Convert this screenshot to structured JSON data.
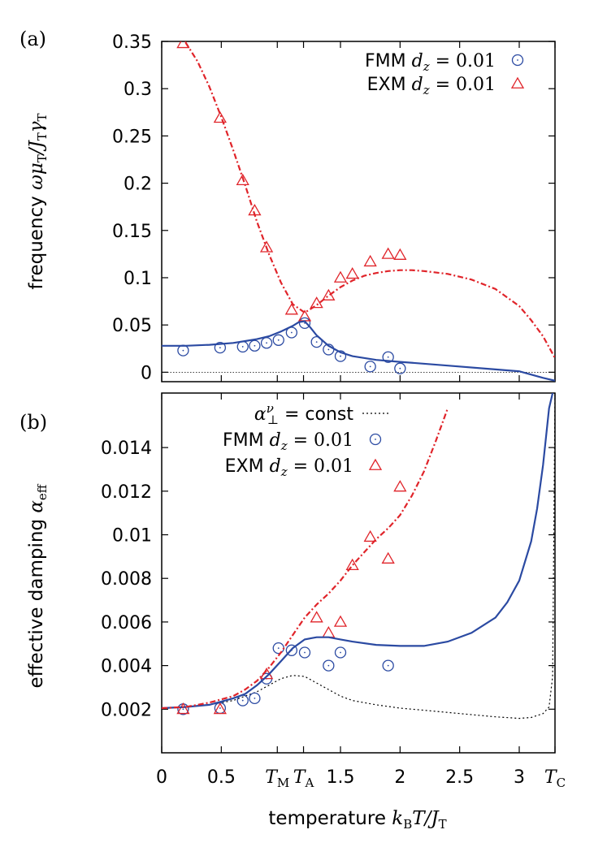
{
  "chart_data": [
    {
      "type": "line",
      "panel_label": "(a)",
      "ylabel_text": "frequency",
      "ylabel_math": "ωμ_T / J_T γ_T",
      "xlabel": "",
      "ylim": [
        -0.01,
        0.35
      ],
      "xlim": [
        0,
        3.3
      ],
      "yticks": [
        0,
        0.05,
        0.1,
        0.15,
        0.2,
        0.25,
        0.3,
        0.35
      ],
      "ytick_labels": [
        "0",
        "0.05",
        "0.1",
        "0.15",
        "0.2",
        "0.25",
        "0.3",
        "0.35"
      ],
      "zero_line": true,
      "legend_position": "top-right",
      "series": [
        {
          "name": "FMM d_z = 0.01",
          "legend_prefix": "FMM",
          "legend_math": "d_z = 0.01",
          "kind": "points",
          "marker": "circle",
          "color": "#2b4aa2",
          "x": [
            0.18,
            0.49,
            0.68,
            0.78,
            0.88,
            0.98,
            1.09,
            1.2,
            1.3,
            1.4,
            1.5,
            1.75,
            1.9,
            2.0
          ],
          "y": [
            0.023,
            0.026,
            0.027,
            0.028,
            0.031,
            0.034,
            0.042,
            0.052,
            0.032,
            0.024,
            0.017,
            0.006,
            0.016,
            0.004
          ]
        },
        {
          "name": "EXM d_z = 0.01",
          "legend_prefix": "EXM",
          "legend_math": "d_z = 0.01",
          "kind": "points",
          "marker": "triangle",
          "color": "#e0242a",
          "x": [
            0.18,
            0.49,
            0.68,
            0.78,
            0.88,
            1.09,
            1.2,
            1.3,
            1.4,
            1.5,
            1.6,
            1.75,
            1.9,
            2.0
          ],
          "y": [
            0.348,
            0.269,
            0.203,
            0.171,
            0.132,
            0.066,
            0.059,
            0.073,
            0.081,
            0.1,
            0.104,
            0.117,
            0.125,
            0.124
          ]
        },
        {
          "name": "FMM theory",
          "kind": "line",
          "style": "solid",
          "color": "#2b4aa2",
          "x": [
            0.0,
            0.2,
            0.4,
            0.6,
            0.7,
            0.8,
            0.9,
            1.0,
            1.1,
            1.15,
            1.2,
            1.25,
            1.3,
            1.4,
            1.5,
            1.6,
            1.8,
            2.0,
            2.4,
            2.8,
            3.0,
            3.2,
            3.3
          ],
          "y": [
            0.028,
            0.028,
            0.029,
            0.031,
            0.033,
            0.035,
            0.038,
            0.043,
            0.049,
            0.053,
            0.054,
            0.047,
            0.039,
            0.028,
            0.021,
            0.017,
            0.013,
            0.011,
            0.007,
            0.003,
            0.001,
            -0.006,
            -0.009
          ]
        },
        {
          "name": "EXM theory",
          "kind": "line",
          "style": "dashed",
          "color": "#e0242a",
          "x": [
            0.2,
            0.3,
            0.4,
            0.5,
            0.6,
            0.7,
            0.8,
            0.9,
            1.0,
            1.1,
            1.2,
            1.3,
            1.4,
            1.5,
            1.6,
            1.7,
            1.8,
            1.9,
            2.0,
            2.1,
            2.2,
            2.4,
            2.6,
            2.8,
            3.0,
            3.1,
            3.2,
            3.3
          ],
          "y": [
            0.349,
            0.329,
            0.302,
            0.27,
            0.235,
            0.198,
            0.159,
            0.125,
            0.095,
            0.072,
            0.063,
            0.071,
            0.081,
            0.09,
            0.097,
            0.102,
            0.105,
            0.107,
            0.108,
            0.108,
            0.107,
            0.104,
            0.098,
            0.088,
            0.07,
            0.055,
            0.038,
            0.015
          ]
        }
      ]
    },
    {
      "type": "line",
      "panel_label": "(b)",
      "ylabel_text": "effective damping",
      "ylabel_math": "α_eff",
      "xlabel_text": "temperature",
      "xlabel_math": "k_B T / J_T",
      "ylim": [
        0.0,
        0.0165
      ],
      "xlim": [
        0,
        3.3
      ],
      "yticks": [
        0.002,
        0.004,
        0.006,
        0.008,
        0.01,
        0.012,
        0.014
      ],
      "ytick_labels": [
        "0.002",
        "0.004",
        "0.006",
        "0.008",
        "0.01",
        "0.012",
        "0.014"
      ],
      "xticks": [
        0,
        0.5,
        0.97,
        1.19,
        1.5,
        2,
        2.5,
        3,
        3.3
      ],
      "xtick_labels": [
        "0",
        "0.5",
        "T_M",
        "T_A",
        "1.5",
        "2",
        "2.5",
        "3",
        "T_C"
      ],
      "legend_position": "top-right",
      "series": [
        {
          "name": "α⊥^ν = const",
          "legend_math": "α⊥ν",
          "legend_suffix": "= const",
          "kind": "line",
          "style": "dotted",
          "color": "#000000",
          "x": [
            0.0,
            0.2,
            0.4,
            0.6,
            0.8,
            0.9,
            1.0,
            1.1,
            1.2,
            1.3,
            1.4,
            1.5,
            1.6,
            1.8,
            2.0,
            2.2,
            2.4,
            2.6,
            2.8,
            3.0,
            3.1,
            3.2,
            3.25,
            3.28,
            3.3
          ],
          "y": [
            0.00205,
            0.0021,
            0.0022,
            0.0024,
            0.0028,
            0.0031,
            0.0034,
            0.00355,
            0.0035,
            0.0032,
            0.0029,
            0.0026,
            0.0024,
            0.0022,
            0.00205,
            0.00195,
            0.00185,
            0.00175,
            0.00165,
            0.00158,
            0.00162,
            0.0018,
            0.0021,
            0.0035,
            0.0165
          ]
        },
        {
          "name": "FMM d_z = 0.01",
          "legend_prefix": "FMM",
          "legend_math": "d_z = 0.01",
          "kind": "points",
          "marker": "circle",
          "color": "#2b4aa2",
          "x": [
            0.18,
            0.49,
            0.68,
            0.78,
            0.88,
            0.98,
            1.09,
            1.2,
            1.4,
            1.5,
            1.9
          ],
          "y": [
            0.002,
            0.00205,
            0.0024,
            0.0025,
            0.0034,
            0.0048,
            0.0047,
            0.0046,
            0.004,
            0.0046,
            0.004
          ]
        },
        {
          "name": "EXM d_z = 0.01",
          "legend_prefix": "EXM",
          "legend_math": "d_z = 0.01",
          "kind": "points",
          "marker": "triangle",
          "color": "#e0242a",
          "x": [
            0.18,
            0.49,
            0.88,
            1.3,
            1.4,
            1.5,
            1.6,
            1.75,
            1.9,
            2.0
          ],
          "y": [
            0.002,
            0.002,
            0.0036,
            0.0062,
            0.0055,
            0.006,
            0.0086,
            0.0099,
            0.0089,
            0.0122
          ]
        },
        {
          "name": "FMM theory",
          "kind": "line",
          "style": "solid",
          "color": "#2b4aa2",
          "x": [
            0.0,
            0.2,
            0.4,
            0.6,
            0.7,
            0.8,
            0.9,
            1.0,
            1.1,
            1.2,
            1.3,
            1.4,
            1.5,
            1.6,
            1.8,
            2.0,
            2.2,
            2.4,
            2.6,
            2.8,
            2.9,
            3.0,
            3.1,
            3.15,
            3.2,
            3.25,
            3.28
          ],
          "y": [
            0.00205,
            0.0021,
            0.0022,
            0.0025,
            0.0027,
            0.0031,
            0.0036,
            0.0042,
            0.0048,
            0.0052,
            0.0053,
            0.0053,
            0.0052,
            0.0051,
            0.00495,
            0.0049,
            0.0049,
            0.0051,
            0.0055,
            0.0062,
            0.0069,
            0.0079,
            0.0097,
            0.0112,
            0.0132,
            0.0158,
            0.0165
          ]
        },
        {
          "name": "EXM theory",
          "kind": "line",
          "style": "dashed",
          "color": "#e0242a",
          "x": [
            0.0,
            0.2,
            0.4,
            0.6,
            0.7,
            0.8,
            0.9,
            1.0,
            1.1,
            1.2,
            1.3,
            1.4,
            1.5,
            1.6,
            1.7,
            1.8,
            1.9,
            2.0,
            2.1,
            2.2,
            2.3,
            2.4
          ],
          "y": [
            0.00205,
            0.0021,
            0.0023,
            0.0026,
            0.0029,
            0.0033,
            0.0039,
            0.0046,
            0.0054,
            0.0062,
            0.0068,
            0.0073,
            0.0079,
            0.0086,
            0.0092,
            0.0098,
            0.0103,
            0.0109,
            0.0118,
            0.0129,
            0.0143,
            0.0158
          ]
        }
      ]
    }
  ]
}
